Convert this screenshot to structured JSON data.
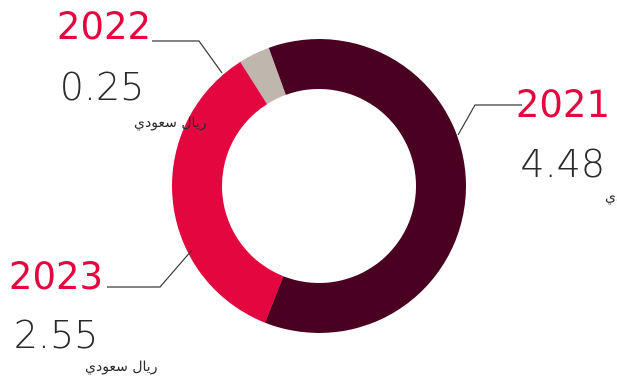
{
  "chart_data": {
    "type": "pie",
    "variant": "donut",
    "title": "",
    "slices": [
      {
        "label": "2021",
        "value": 4.48,
        "value_text": "4.48",
        "unit": "ريال سعودي",
        "color": "#4a0020",
        "label_color": "#e3063f"
      },
      {
        "label": "2023",
        "value": 2.55,
        "value_text": "2.55",
        "unit": "ريال سعودي",
        "color": "#e3063f",
        "label_color": "#e3063f"
      },
      {
        "label": "2022",
        "value": 0.25,
        "value_text": "0.25",
        "unit": "ريال سعودي",
        "color": "#bfb6ae",
        "label_color": "#e3063f"
      }
    ],
    "leader_line_color": "#3a3a3a"
  }
}
